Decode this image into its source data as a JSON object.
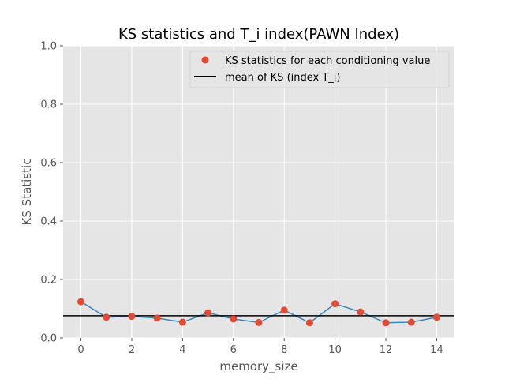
{
  "chart_data": {
    "type": "scatter",
    "title": "KS statistics and T_i index(PAWN Index)",
    "xlabel": "memory_size",
    "ylabel": "KS Statistic",
    "x": [
      0,
      1,
      2,
      3,
      4,
      5,
      6,
      7,
      8,
      9,
      10,
      11,
      12,
      13,
      14
    ],
    "series": [
      {
        "name": "KS statistics for each conditioning value",
        "marker": "circle",
        "color": "#E24A33",
        "values": [
          0.124,
          0.071,
          0.074,
          0.068,
          0.054,
          0.086,
          0.065,
          0.053,
          0.095,
          0.052,
          0.117,
          0.089,
          0.052,
          0.054,
          0.071
        ]
      },
      {
        "name": "",
        "style": "line",
        "color": "#348ABD",
        "values": [
          0.124,
          0.071,
          0.074,
          0.068,
          0.054,
          0.086,
          0.065,
          0.053,
          0.095,
          0.052,
          0.117,
          0.089,
          0.052,
          0.054,
          0.071
        ]
      }
    ],
    "hline": {
      "name": "mean of KS (index T_i)",
      "value": 0.076,
      "color": "#000000"
    },
    "xlim": [
      -0.7,
      14.7
    ],
    "ylim": [
      0,
      1.0
    ],
    "xticks": [
      "0",
      "2",
      "4",
      "6",
      "8",
      "10",
      "12",
      "14"
    ],
    "xtick_values": [
      0,
      2,
      4,
      6,
      8,
      10,
      12,
      14
    ],
    "yticks": [
      "0.0",
      "0.2",
      "0.4",
      "0.6",
      "0.8",
      "1.0"
    ],
    "ytick_values": [
      0,
      0.2,
      0.4,
      0.6,
      0.8,
      1.0
    ],
    "grid": true,
    "legend_position": "top-right",
    "colors": {
      "plot_background": "#E5E5E5",
      "grid": "#FFFFFF",
      "tick_text": "#555555"
    }
  }
}
